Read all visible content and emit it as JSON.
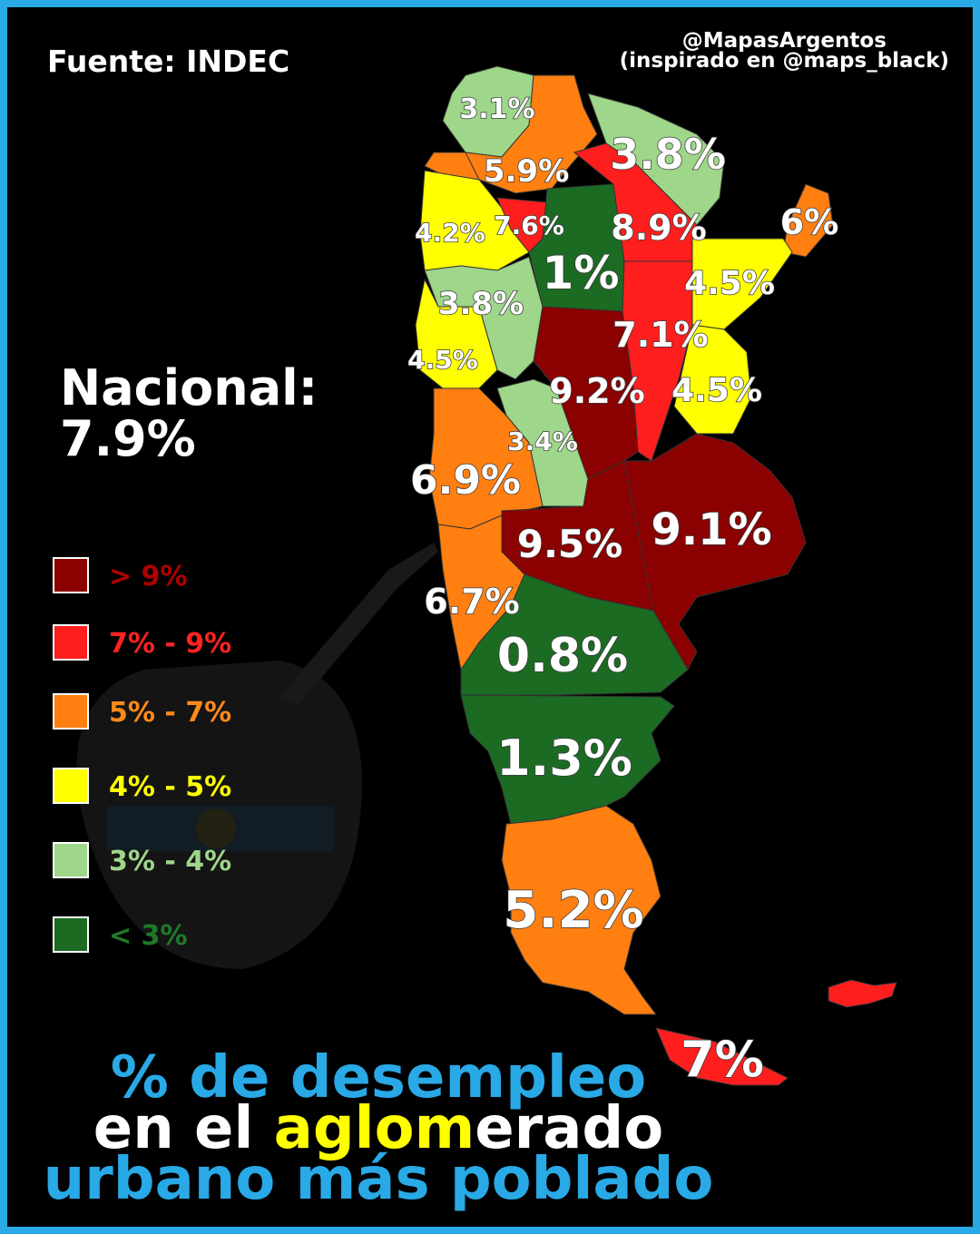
{
  "source": "Fuente: INDEC",
  "credit": {
    "handle": "@MapasArgentos",
    "inspired": "(inspirado en @maps_black)"
  },
  "national": {
    "label": "Nacional:",
    "value": "7.9%"
  },
  "colors": {
    "frame": "#29a9e6",
    "gt9": "#8b0000",
    "r7_9": "#ff1e1e",
    "r5_7": "#ff7f11",
    "r4_5": "#ffff00",
    "r3_4": "#9ed68a",
    "lt3": "#1b6b23"
  },
  "legend": [
    {
      "label": "> 9%",
      "color": "#8b0000",
      "text_color": "#b00000"
    },
    {
      "label": "7% - 9%",
      "color": "#ff1e1e",
      "text_color": "#ff2222"
    },
    {
      "label": "5% - 7%",
      "color": "#ff7f11",
      "text_color": "#ff8a1a"
    },
    {
      "label": "4% - 5%",
      "color": "#ffff00",
      "text_color": "#ffff00"
    },
    {
      "label": "3% - 4%",
      "color": "#9ed68a",
      "text_color": "#9ed68a"
    },
    {
      "label": "< 3%",
      "color": "#1b6b23",
      "text_color": "#1e7a28"
    }
  ],
  "regions": {
    "jujuy": "3.1%",
    "salta": "5.9%",
    "formosa": "3.8%",
    "tucuman": "7.6%",
    "catamarca": "4.2%",
    "santiago": "1%",
    "chaco": "8.9%",
    "misiones": "6%",
    "corrientes": "4.5%",
    "la_rioja": "3.8%",
    "santa_fe": "7.1%",
    "san_juan": "4.5%",
    "cordoba": "9.2%",
    "entre_rios": "4.5%",
    "san_luis": "3.4%",
    "mendoza": "6.9%",
    "la_pampa": "9.5%",
    "buenos_aires": "9.1%",
    "neuquen": "6.7%",
    "rio_negro": "0.8%",
    "chubut": "1.3%",
    "santa_cruz": "5.2%",
    "tierra_del_fuego": "7%"
  },
  "title": {
    "line1": "% de desempleo",
    "line2_a": "en el ",
    "line2_b": "aglom",
    "line2_c": "erado",
    "line3": "urbano más poblado",
    "color_blue": "#29a9e6",
    "color_white": "#ffffff",
    "color_yellow": "#ffff00"
  }
}
